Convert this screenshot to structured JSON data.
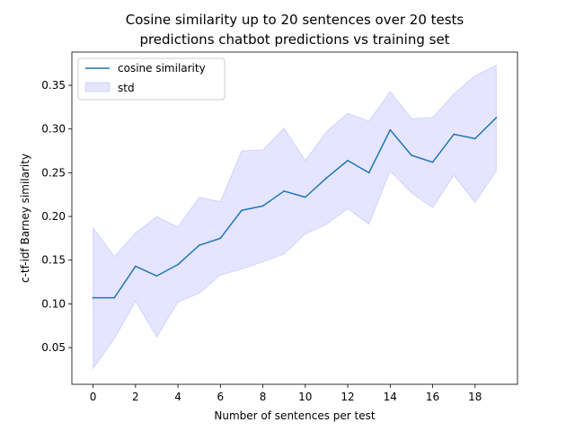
{
  "chart_data": {
    "type": "line",
    "title_lines": [
      "Cosine similarity up to 20 sentences over 20 tests",
      "predictions chatbot predictions vs training set"
    ],
    "xlabel": "Number of sentences per test",
    "ylabel": "c-tf-idf Barney similarity",
    "xlim": [
      -1,
      20
    ],
    "ylim": [
      0.008,
      0.388
    ],
    "xticks": [
      0,
      2,
      4,
      6,
      8,
      10,
      12,
      14,
      16,
      18
    ],
    "yticks": [
      0.05,
      0.1,
      0.15,
      0.2,
      0.25,
      0.3,
      0.35
    ],
    "x": [
      0,
      1,
      2,
      3,
      4,
      5,
      6,
      7,
      8,
      9,
      10,
      11,
      12,
      13,
      14,
      15,
      16,
      17,
      18,
      19
    ],
    "series": [
      {
        "name": "cosine similarity",
        "color": "#1f77b4",
        "values": [
          0.107,
          0.107,
          0.143,
          0.132,
          0.145,
          0.167,
          0.175,
          0.207,
          0.212,
          0.229,
          0.222,
          0.244,
          0.264,
          0.25,
          0.299,
          0.27,
          0.262,
          0.294,
          0.289,
          0.313
        ]
      }
    ],
    "band": {
      "name": "std",
      "color": "#0000ff",
      "upper": [
        0.187,
        0.154,
        0.181,
        0.2,
        0.188,
        0.222,
        0.217,
        0.275,
        0.276,
        0.301,
        0.264,
        0.297,
        0.318,
        0.309,
        0.343,
        0.312,
        0.313,
        0.34,
        0.361,
        0.373
      ],
      "lower": [
        0.026,
        0.06,
        0.103,
        0.062,
        0.102,
        0.112,
        0.133,
        0.14,
        0.148,
        0.157,
        0.18,
        0.191,
        0.209,
        0.191,
        0.252,
        0.227,
        0.21,
        0.247,
        0.216,
        0.252
      ]
    },
    "legend": {
      "placement": "upper-left",
      "entries": [
        "cosine similarity",
        "std"
      ]
    },
    "grid": false
  }
}
